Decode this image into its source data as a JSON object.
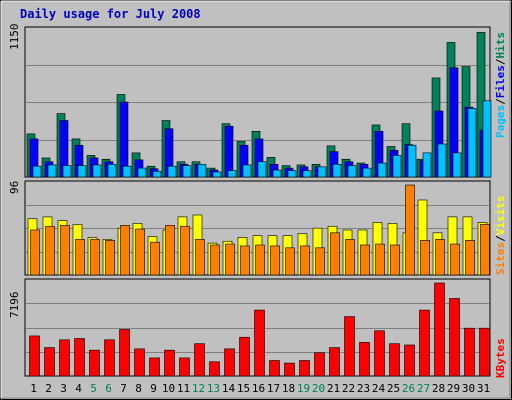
{
  "chart_data": {
    "type": "bar",
    "title": "Daily usage for July 2008",
    "colors": {
      "background": "#c0c0c0",
      "title": "#0000c0",
      "hits": "#00805c",
      "files": "#0000ff",
      "pages": "#00c0ff",
      "visits": "#ffff00",
      "sites": "#ff8000",
      "kbytes": "#ff0000",
      "weekend_label": "#00805c"
    },
    "days": [
      "1",
      "2",
      "3",
      "4",
      "5",
      "6",
      "7",
      "8",
      "9",
      "10",
      "11",
      "12",
      "13",
      "14",
      "15",
      "16",
      "17",
      "18",
      "19",
      "20",
      "21",
      "22",
      "23",
      "24",
      "25",
      "26",
      "27",
      "28",
      "29",
      "30",
      "31"
    ],
    "weekend_days": [
      "5",
      "6",
      "12",
      "13",
      "19",
      "20",
      "26",
      "27"
    ],
    "panels": {
      "hits_files_pages": {
        "ymax_label": "1150",
        "ymax": 1150,
        "legend": {
          "pages": "Pages",
          "files": "Files",
          "hits": "Hits",
          "sep": "/"
        },
        "series": [
          {
            "name": "Hits",
            "values": [
              340,
              150,
              500,
              300,
              170,
              140,
              650,
              190,
              85,
              445,
              120,
              120,
              70,
              420,
              280,
              360,
              155,
              90,
              95,
              100,
              245,
              140,
              110,
              410,
              240,
              420,
              140,
              780,
              1060,
              870,
              1140
            ]
          },
          {
            "name": "Files",
            "values": [
              300,
              120,
              445,
              250,
              150,
              120,
              590,
              135,
              65,
              380,
              100,
              100,
              55,
              400,
              250,
              300,
              100,
              70,
              80,
              80,
              200,
              120,
              100,
              360,
              210,
              255,
              130,
              520,
              860,
              550,
              370
            ]
          },
          {
            "name": "Pages",
            "values": [
              85,
              95,
              90,
              90,
              95,
              100,
              85,
              70,
              45,
              85,
              90,
              100,
              40,
              50,
              95,
              120,
              55,
              50,
              50,
              80,
              100,
              90,
              70,
              110,
              170,
              250,
              190,
              260,
              190,
              540,
              600
            ]
          }
        ]
      },
      "visits_sites": {
        "ymax_label": "96",
        "ymax": 96,
        "legend": {
          "sites": "Sites",
          "visits": "Visits",
          "sep": "/"
        },
        "series": [
          {
            "name": "Visits",
            "values": [
              60,
              62,
              58,
              54,
              40,
              38,
              50,
              55,
              41,
              48,
              62,
              64,
              34,
              36,
              40,
              42,
              42,
              42,
              44,
              50,
              52,
              48,
              48,
              56,
              55,
              45,
              80,
              45,
              62,
              62,
              56
            ]
          },
          {
            "name": "Sites",
            "values": [
              48,
              52,
              53,
              38,
              38,
              37,
              53,
              49,
              35,
              53,
              52,
              38,
              32,
              33,
              31,
              32,
              31,
              29,
              31,
              29,
              45,
              38,
              32,
              33,
              32,
              96,
              37,
              38,
              33,
              37,
              54
            ]
          }
        ]
      },
      "kbytes": {
        "ymax_label": "7196",
        "ymax": 7196,
        "legend": {
          "kbytes": "KBytes"
        },
        "series": [
          {
            "name": "KBytes",
            "values": [
              3100,
              2200,
              2800,
              2900,
              2000,
              2800,
              3600,
              2100,
              1400,
              2000,
              1400,
              2500,
              1100,
              2100,
              3000,
              5100,
              1200,
              1000,
              1200,
              1800,
              2200,
              4600,
              2600,
              3500,
              2500,
              2400,
              5100,
              7196,
              6000,
              3700,
              3700
            ]
          }
        ]
      }
    }
  }
}
